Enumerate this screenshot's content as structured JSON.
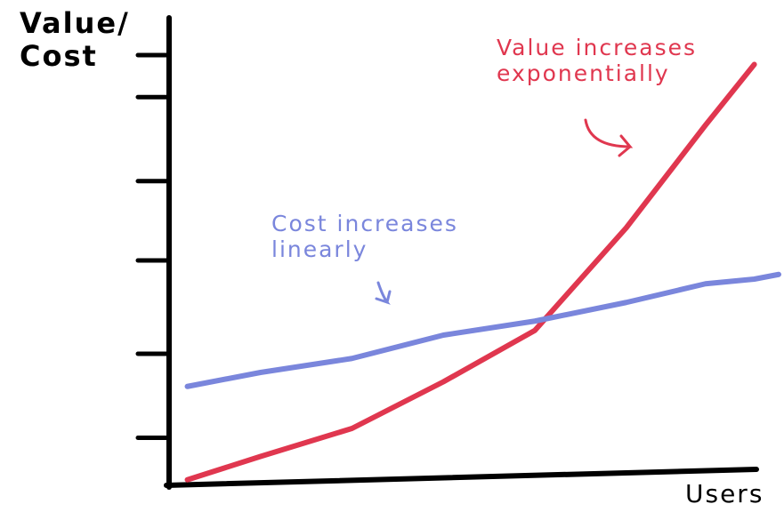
{
  "chart_data": {
    "type": "line",
    "ylabel": "Value/\nCost",
    "xlabel": "Users",
    "annotations": [
      {
        "text": "Value increases\nexponentially",
        "color": "#e0374f"
      },
      {
        "text": "Cost increases\nlinearly",
        "color": "#7a86dc"
      }
    ],
    "x": [
      3,
      15,
      30,
      45,
      60,
      75,
      88,
      96,
      100
    ],
    "series": [
      {
        "color": "#e0374f",
        "values": [
          1,
          6,
          12,
          22,
          33,
          55,
          77,
          90,
          null
        ]
      },
      {
        "color": "#7a86dc",
        "values": [
          21,
          24,
          27,
          32,
          35,
          39,
          43,
          44,
          45
        ]
      }
    ],
    "xlim": [
      0,
      100
    ],
    "ylim": [
      0,
      100
    ],
    "yticks": [
      10,
      28,
      48,
      65,
      83,
      92
    ]
  }
}
